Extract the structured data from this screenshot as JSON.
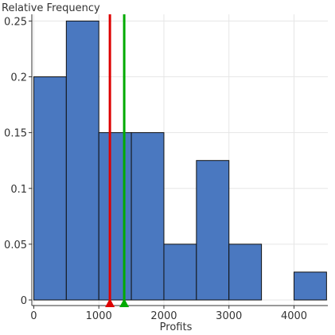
{
  "chart_data": {
    "type": "bar",
    "title": "",
    "xlabel": "Profits",
    "ylabel": "Relative Frequency",
    "bin_edges": [
      0,
      500,
      1000,
      1500,
      2000,
      2500,
      3000,
      3500,
      4000,
      4500
    ],
    "values": [
      0.2,
      0.25,
      0.15,
      0.15,
      0.05,
      0.125,
      0.05,
      0,
      0.025
    ],
    "xlim": [
      -30,
      4520
    ],
    "ylim": [
      -0.005,
      0.256
    ],
    "x_ticks": [
      0,
      1000,
      2000,
      3000,
      4000
    ],
    "x_tick_labels": [
      "0",
      "1000",
      "2000",
      "3000",
      "4000"
    ],
    "y_ticks": [
      0,
      0.05,
      0.1,
      0.15,
      0.2,
      0.25
    ],
    "y_tick_labels": [
      "0",
      "0.05",
      "0.1",
      "0.15",
      "0.2",
      "0.25"
    ],
    "grid": true,
    "bar_color": "#4a78c0",
    "markers": [
      {
        "x": 1170,
        "color": "#dd0000"
      },
      {
        "x": 1390,
        "color": "#00aa00"
      }
    ]
  }
}
